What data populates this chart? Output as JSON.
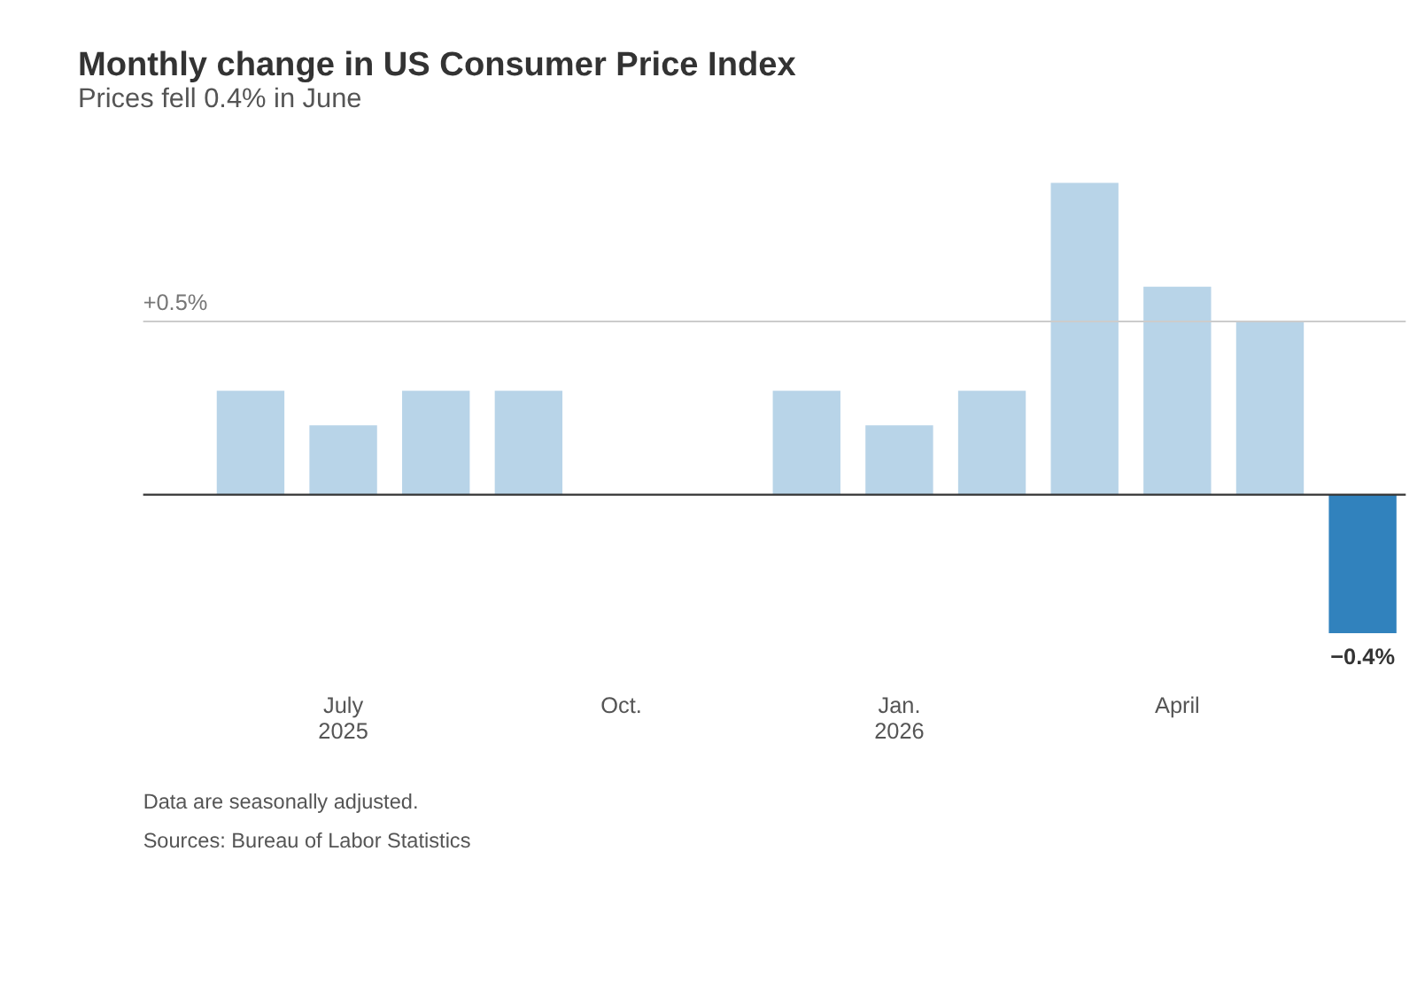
{
  "chart_data": {
    "type": "bar",
    "title": "Monthly change in US Consumer Price Index",
    "subtitle": "Prices fell 0.4% in June",
    "categories": [
      null,
      "July\n2025",
      null,
      null,
      "Oct.",
      null,
      null,
      "Jan.\n2026",
      null,
      null,
      "April",
      null,
      null
    ],
    "values": [
      0.3,
      0.2,
      0.3,
      0.3,
      null,
      null,
      0.3,
      0.2,
      0.3,
      0.9,
      0.6,
      0.5,
      -0.4
    ],
    "colors": [
      "#b8d4e8",
      "#b8d4e8",
      "#b8d4e8",
      "#b8d4e8",
      "#b8d4e8",
      "#b8d4e8",
      "#b8d4e8",
      "#b8d4e8",
      "#b8d4e8",
      "#b8d4e8",
      "#b8d4e8",
      "#b8d4e8",
      "#3182bd"
    ],
    "value_labels": [
      null,
      null,
      null,
      null,
      null,
      null,
      null,
      null,
      null,
      null,
      null,
      null,
      "−0.4%"
    ],
    "ref_lines": [
      {
        "axis": "y",
        "value": 0,
        "label": null,
        "color": "#333333"
      },
      {
        "axis": "y",
        "value": 0.5,
        "label": "+0.5%",
        "color": "#cccccc"
      }
    ],
    "annotations": [
      "Data are seasonally adjusted.",
      "Sources: Bureau of Labor Statistics"
    ]
  }
}
